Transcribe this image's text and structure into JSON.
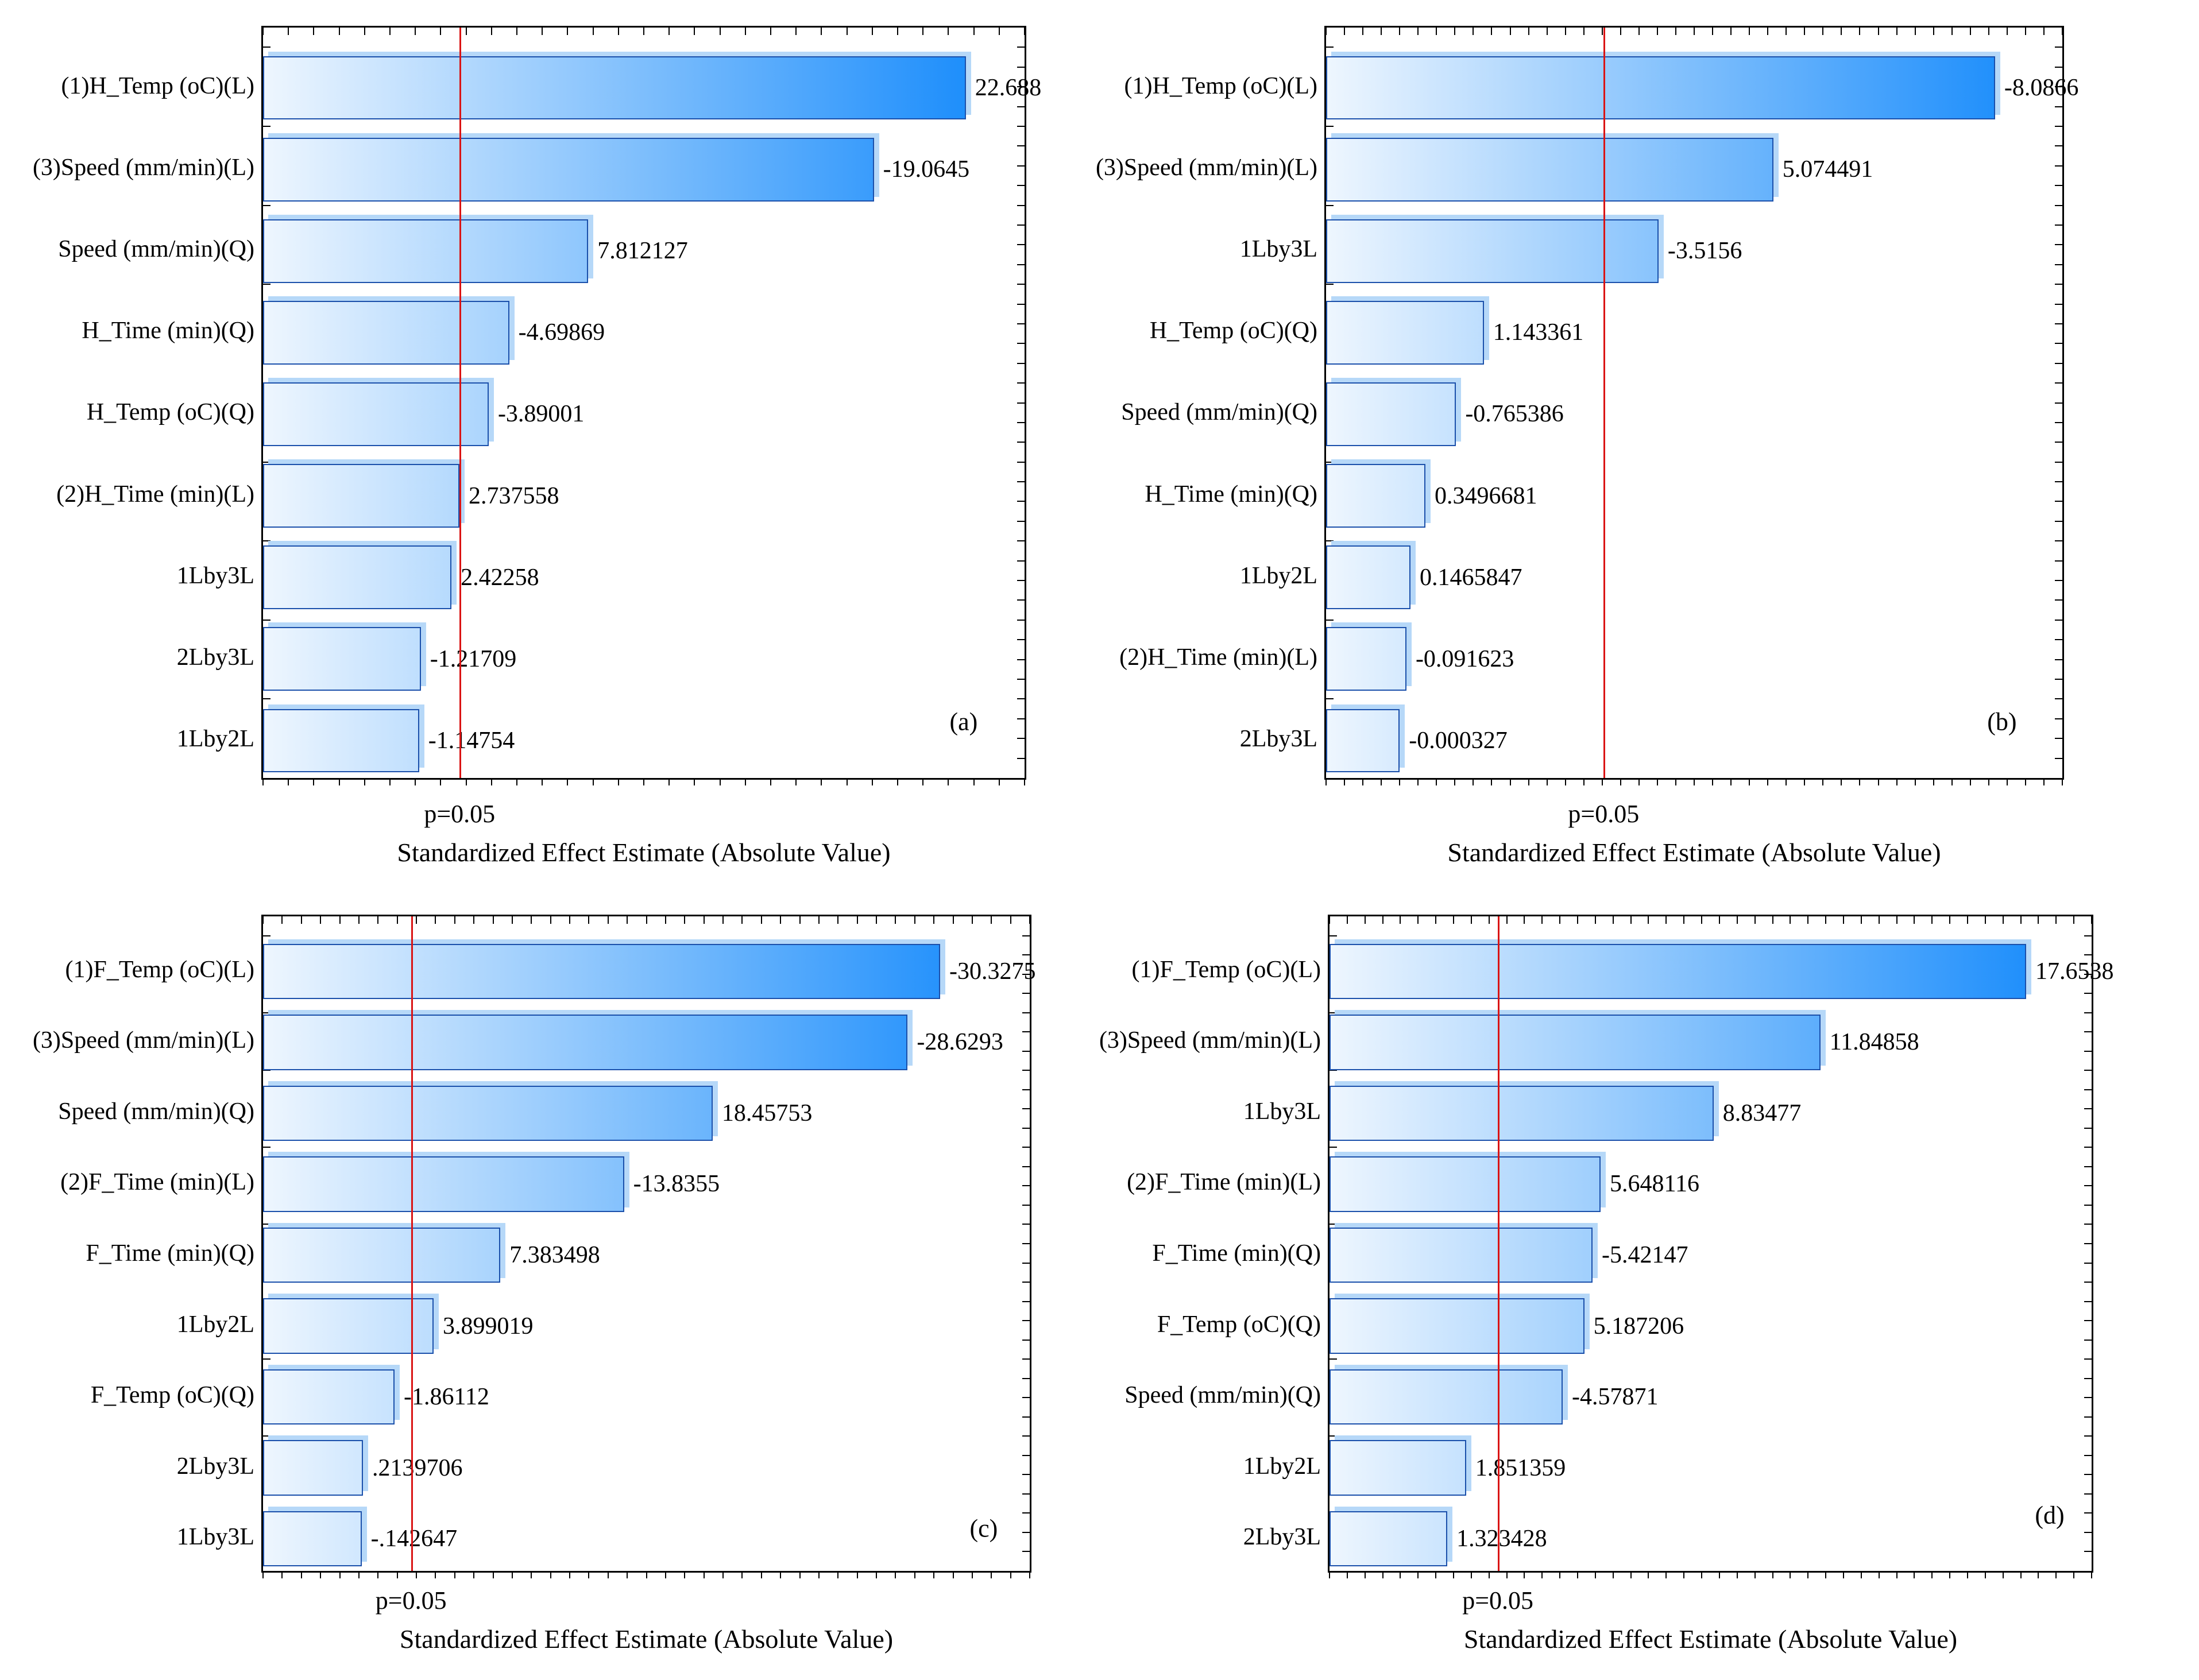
{
  "figure_type": "pareto-charts-of-standardized-effects",
  "colors": {
    "bar_gradient_start": "#eef6fe",
    "bar_gradient_end": "#0d86fb",
    "bar_border": "#1b50ab",
    "bar_shadow": "#b6d8f8",
    "significance_line": "#da1414",
    "frame": "#000000",
    "text": "#000000",
    "background": "#ffffff"
  },
  "chart_data": [
    {
      "panel_letter": "(a)",
      "type": "bar",
      "orientation": "horizontal",
      "categories": [
        "(1)H_Temp (oC)(L)",
        "(3)Speed (mm/min)(L)",
        "Speed (mm/min)(Q)",
        "H_Time (min)(Q)",
        "H_Temp (oC)(Q)",
        "(2)H_Time (min)(L)",
        "1Lby3L",
        "2Lby3L",
        "1Lby2L"
      ],
      "values": [
        22.688,
        -19.0645,
        7.812127,
        -4.69869,
        -3.89001,
        2.737558,
        2.42258,
        -1.21709,
        -1.14754
      ],
      "value_labels": [
        "22.688",
        "-19.0645",
        "7.812127",
        "-4.69869",
        "-3.89001",
        "2.737558",
        "2.42258",
        "-1.21709",
        "-1.14754"
      ],
      "bars_show_absolute_value": true,
      "xlabel": "Standardized Effect Estimate (Absolute Value)",
      "p_label": "p=0.05",
      "p_line_value": 2.776,
      "xlim": [
        -5,
        25
      ],
      "x_minor_tick_intervals": 30,
      "grid": false,
      "legend": "none"
    },
    {
      "panel_letter": "(b)",
      "type": "bar",
      "orientation": "horizontal",
      "categories": [
        "(1)H_Temp (oC)(L)",
        "(3)Speed (mm/min)(L)",
        "1Lby3L",
        "H_Temp (oC)(Q)",
        "Speed (mm/min)(Q)",
        "H_Time (min)(Q)",
        "1Lby2L",
        "(2)H_Time (min)(L)",
        "2Lby3L"
      ],
      "values": [
        -8.0866,
        5.074491,
        -3.5156,
        1.143361,
        -0.765386,
        0.3496681,
        0.1465847,
        -0.091623,
        -0.000327
      ],
      "value_labels": [
        "-8.0866",
        "5.074491",
        "-3.5156",
        "1.143361",
        "-0.765386",
        "0.3496681",
        "0.1465847",
        "-0.091623",
        "-0.000327"
      ],
      "bars_show_absolute_value": true,
      "xlabel": "Standardized Effect Estimate (Absolute Value)",
      "p_label": "p=0.05",
      "p_line_value": 2.776,
      "xlim": [
        -1,
        9
      ],
      "x_minor_tick_intervals": 40,
      "grid": false,
      "legend": "none"
    },
    {
      "panel_letter": "(c)",
      "type": "bar",
      "orientation": "horizontal",
      "categories": [
        "(1)F_Temp (oC)(L)",
        "(3)Speed (mm/min)(L)",
        "Speed (mm/min)(Q)",
        "(2)F_Time (min)(L)",
        "F_Time (min)(Q)",
        "1Lby2L",
        "F_Temp (oC)(Q)",
        "2Lby3L",
        "1Lby3L"
      ],
      "values": [
        -30.3275,
        -28.6293,
        18.45753,
        -13.8355,
        7.383498,
        3.899019,
        -1.86112,
        0.2139706,
        -0.142647
      ],
      "value_labels": [
        "-30.3275",
        "-28.6293",
        "18.45753",
        "-13.8355",
        "7.383498",
        "3.899019",
        "-1.86112",
        ".2139706",
        "-.142647"
      ],
      "bars_show_absolute_value": true,
      "xlabel": "Standardized Effect Estimate (Absolute Value)",
      "p_label": "p=0.05",
      "p_line_value": 2.776,
      "xlim": [
        -5,
        35
      ],
      "x_minor_tick_intervals": 40,
      "grid": false,
      "legend": "none"
    },
    {
      "panel_letter": "(d)",
      "type": "bar",
      "orientation": "horizontal",
      "categories": [
        "(1)F_Temp (oC)(L)",
        "(3)Speed (mm/min)(L)",
        "1Lby3L",
        "(2)F_Time (min)(L)",
        "F_Time (min)(Q)",
        "F_Temp (oC)(Q)",
        "Speed (mm/min)(Q)",
        "1Lby2L",
        "2Lby3L"
      ],
      "values": [
        17.6538,
        11.84858,
        8.83477,
        5.648116,
        -5.42147,
        5.187206,
        -4.57871,
        1.851359,
        1.323428
      ],
      "value_labels": [
        "17.6538",
        "11.84858",
        "8.83477",
        "5.648116",
        "-5.42147",
        "5.187206",
        "-4.57871",
        "1.851359",
        "1.323428"
      ],
      "bars_show_absolute_value": true,
      "xlabel": "Standardized Effect Estimate (Absolute Value)",
      "p_label": "p=0.05",
      "p_line_value": 2.776,
      "xlim": [
        -2,
        19.5
      ],
      "x_minor_tick_intervals": 43,
      "grid": false,
      "legend": "none"
    }
  ]
}
